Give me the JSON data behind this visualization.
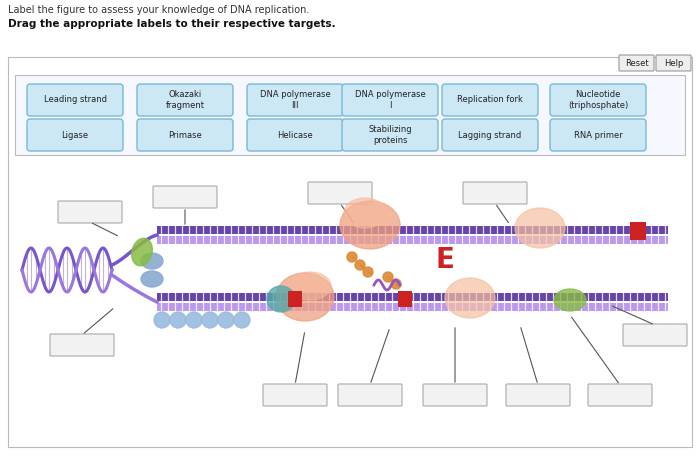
{
  "title_line1": "Label the figure to assess your knowledge of DNA replication.",
  "title_line2": "Drag the appropriate labels to their respective targets.",
  "bg_color": "#ffffff",
  "label_box_color": "#cce8f5",
  "label_box_edge": "#7ab8d8",
  "reset_btn": "Reset",
  "help_btn": "Help",
  "labels_row1": [
    "Leading strand",
    "Okazaki\nfragment",
    "DNA polymerase\nIII",
    "DNA polymerase\nI",
    "Replication fork",
    "Nucleotide\n(triphosphate)"
  ],
  "labels_row2": [
    "Ligase",
    "Primase",
    "Helicase",
    "Stabilizing\nproteins",
    "Lagging strand",
    "RNA primer"
  ],
  "helix_color1": "#7755cc",
  "helix_color2": "#9977dd",
  "strand_dark": "#6644aa",
  "strand_light": "#bb99ee",
  "salmon_color": "#f0a080",
  "teal_color": "#55aaaa",
  "blue_circle_color": "#99bbdd",
  "green_color": "#88bb44",
  "red_color": "#cc2222",
  "orange_color": "#dd8833",
  "rna_color": "#9955bb"
}
